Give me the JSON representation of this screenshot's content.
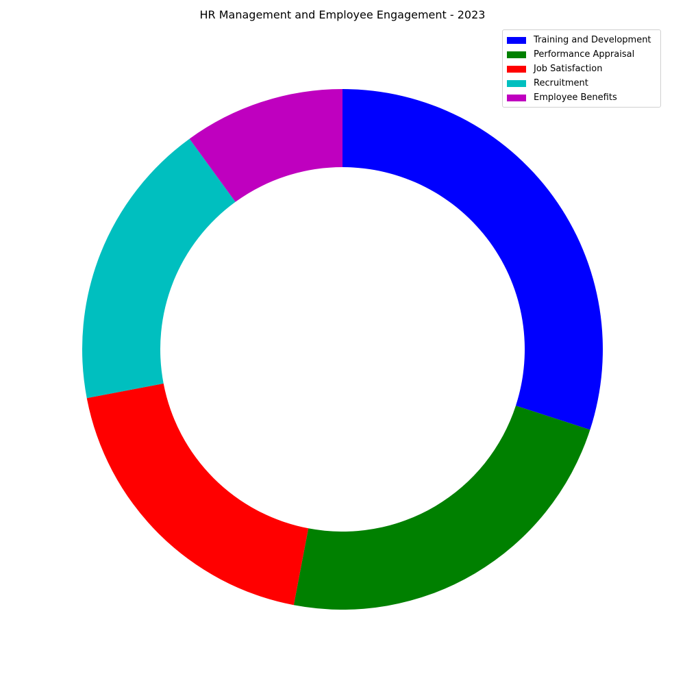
{
  "chart_data": {
    "type": "pie",
    "title": "HR Management and Employee Engagement - 2023",
    "categories": [
      "Training and Development",
      "Performance Appraisal",
      "Job Satisfaction",
      "Recruitment",
      "Employee Benefits"
    ],
    "values": [
      30,
      23,
      19,
      18,
      10
    ],
    "colors": [
      "#0000ff",
      "#008000",
      "#ff0000",
      "#00bfbf",
      "#bf00bf"
    ],
    "donut": true,
    "start_angle": 90,
    "direction": "clockwise",
    "legend_position": "top-right"
  }
}
